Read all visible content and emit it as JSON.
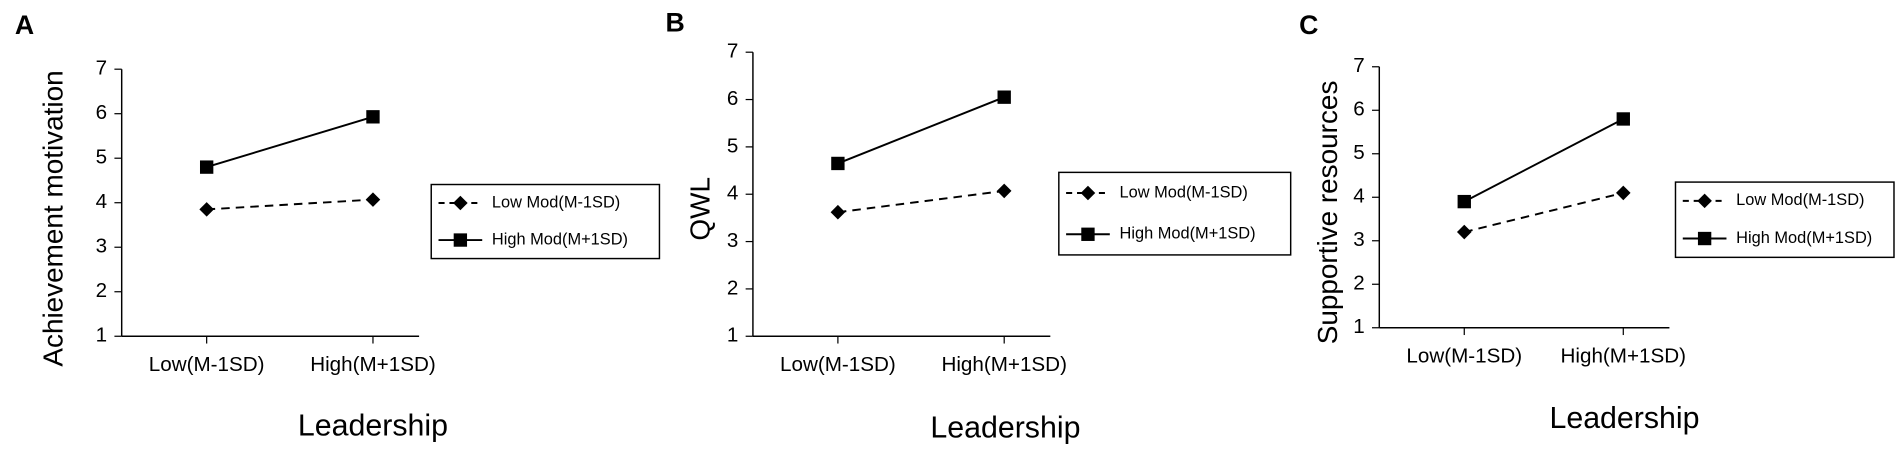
{
  "chart_data": [
    {
      "type": "line",
      "panel": "A",
      "ylabel": "Achievement motivation",
      "xlabel": "Leadership",
      "categories": [
        "Low(M-1SD)",
        "High(M+1SD)"
      ],
      "series": [
        {
          "name": "Low Mod(M-1SD)",
          "color": "#000000",
          "style": "dashed",
          "marker": "diamond",
          "values": [
            3.85,
            4.07
          ]
        },
        {
          "name": "High Mod(M+1SD)",
          "color": "#000000",
          "style": "solid",
          "marker": "square",
          "values": [
            4.8,
            5.93
          ]
        }
      ],
      "ylim": [
        1,
        7
      ],
      "yticks": [
        1,
        2,
        3,
        4,
        5,
        6,
        7
      ]
    },
    {
      "type": "line",
      "panel": "B",
      "ylabel": "QWL",
      "xlabel": "Leadership",
      "categories": [
        "Low(M-1SD)",
        "High(M+1SD)"
      ],
      "series": [
        {
          "name": "Low Mod(M-1SD)",
          "color": "#000000",
          "style": "dashed",
          "marker": "diamond",
          "values": [
            3.62,
            4.07
          ]
        },
        {
          "name": "High Mod(M+1SD)",
          "color": "#000000",
          "style": "solid",
          "marker": "square",
          "values": [
            4.65,
            6.05
          ]
        }
      ],
      "ylim": [
        1,
        7
      ],
      "yticks": [
        1,
        2,
        3,
        4,
        5,
        6,
        7
      ]
    },
    {
      "type": "line",
      "panel": "C",
      "ylabel": "Supportive resources",
      "xlabel": "Leadership",
      "categories": [
        "Low(M-1SD)",
        "High(M+1SD)"
      ],
      "series": [
        {
          "name": "Low Mod(M-1SD)",
          "color": "#000000",
          "style": "dashed",
          "marker": "diamond",
          "values": [
            3.2,
            4.1
          ]
        },
        {
          "name": "High Mod(M+1SD)",
          "color": "#000000",
          "style": "solid",
          "marker": "square",
          "values": [
            3.9,
            5.8
          ]
        }
      ],
      "ylim": [
        1,
        7
      ],
      "yticks": [
        1,
        2,
        3,
        4,
        5,
        6,
        7
      ]
    }
  ]
}
